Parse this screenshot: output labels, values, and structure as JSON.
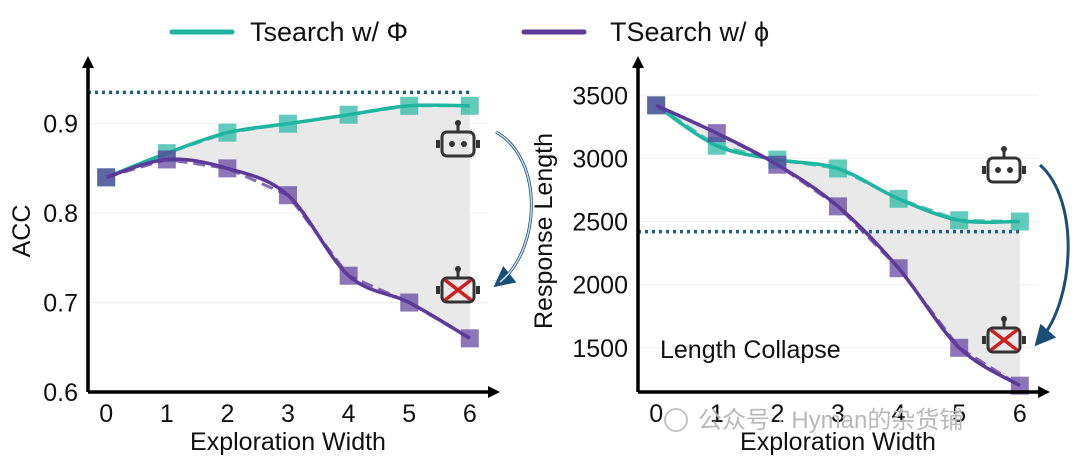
{
  "colors": {
    "teal": "#1fb5a0",
    "purple": "#5b3a9a",
    "dotted_ref": "#1f5f80",
    "fill_gray": "#e9e9e9",
    "arrow_fill": "#c6dcee",
    "arrow_stroke": "#1b4e77",
    "cross": "#cc1f1f"
  },
  "legend": [
    {
      "label": "Tsearch w/ Φ",
      "color": "#1fb5a0"
    },
    {
      "label": "TSearch w/ ϕ",
      "color": "#5b3a9a"
    }
  ],
  "watermark": "公众号 · Hyman的杂货铺",
  "chart_data": [
    {
      "type": "line",
      "xlabel": "Exploration Width",
      "ylabel": "ACC",
      "x": [
        0,
        1,
        2,
        3,
        4,
        5,
        6
      ],
      "xlim": [
        -0.3,
        6.3
      ],
      "ylim": [
        0.6,
        0.96
      ],
      "yticks": [
        0.6,
        0.7,
        0.8,
        0.9
      ],
      "ytick_labels": [
        "0.6",
        "0.7",
        "0.8",
        "0.9"
      ],
      "xtick_labels": [
        "0",
        "1",
        "2",
        "3",
        "4",
        "5",
        "6"
      ],
      "grid": true,
      "reference_line": 0.935,
      "fill_between_series": true,
      "series": [
        {
          "name": "Tsearch w/ Φ",
          "color": "#1fb5a0",
          "values": [
            0.84,
            0.867,
            0.89,
            0.9,
            0.91,
            0.92,
            0.92
          ]
        },
        {
          "name": "TSearch w/ ϕ",
          "color": "#5b3a9a",
          "values": [
            0.84,
            0.86,
            0.85,
            0.82,
            0.73,
            0.7,
            0.66
          ]
        }
      ],
      "annotation": ""
    },
    {
      "type": "line",
      "xlabel": "Exploration Width",
      "ylabel": "Response Length",
      "x": [
        0,
        1,
        2,
        3,
        4,
        5,
        6
      ],
      "xlim": [
        -0.3,
        6.3
      ],
      "ylim": [
        1150,
        3700
      ],
      "yticks": [
        1500,
        2000,
        2500,
        3000,
        3500
      ],
      "ytick_labels": [
        "1500",
        "2000",
        "2500",
        "3000",
        "3500"
      ],
      "xtick_labels": [
        "0",
        "1",
        "2",
        "3",
        "4",
        "5",
        "6"
      ],
      "grid": true,
      "reference_line": 2420,
      "fill_between_series": true,
      "series": [
        {
          "name": "Tsearch w/ Φ",
          "color": "#1fb5a0",
          "values": [
            3420,
            3100,
            2990,
            2920,
            2680,
            2510,
            2500
          ]
        },
        {
          "name": "TSearch w/ ϕ",
          "color": "#5b3a9a",
          "values": [
            3420,
            3200,
            2950,
            2620,
            2130,
            1500,
            1200
          ]
        }
      ],
      "annotation": "Length Collapse"
    }
  ]
}
